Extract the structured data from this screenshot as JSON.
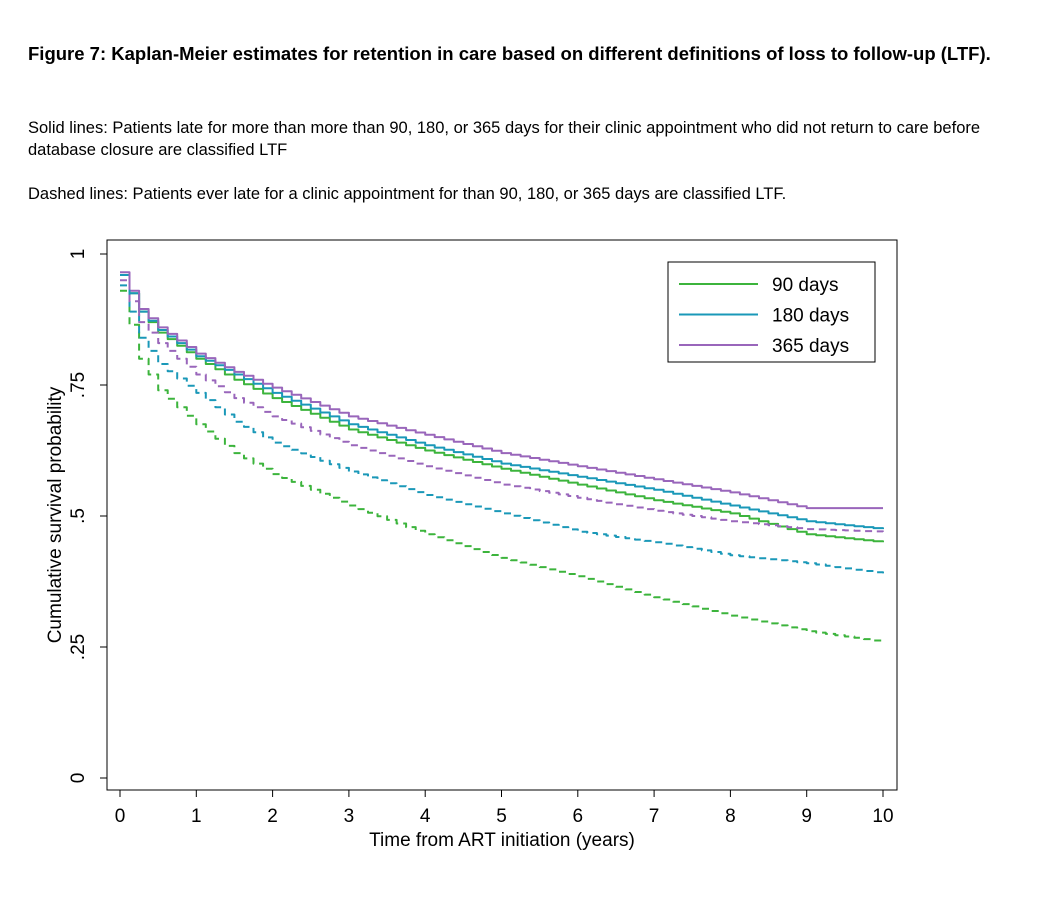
{
  "figure": {
    "title": "Figure 7: Kaplan-Meier estimates for retention in care based on different definitions of loss to follow-up (LTF).",
    "note_solid": "Solid lines: Patients late for more than more than 90, 180, or 365 days for their clinic appointment who did not return to care before database closure are classified LTF",
    "note_dashed": "Dashed lines: Patients ever late for a clinic appointment for than 90, 180, or 365 days are classified LTF."
  },
  "chart_data": {
    "type": "line",
    "title": "",
    "xlabel": "Time from ART initiation (years)",
    "ylabel": "Cumulative survival probability",
    "xlim": [
      0,
      10
    ],
    "ylim": [
      0,
      1
    ],
    "x_ticks": [
      "0",
      "1",
      "2",
      "3",
      "4",
      "5",
      "6",
      "7",
      "8",
      "9",
      "10"
    ],
    "y_ticks": [
      "0",
      ".25",
      ".5",
      ".75",
      "1"
    ],
    "legend_position": "top-right",
    "grid": false,
    "x": [
      0,
      0.25,
      0.5,
      1,
      1.5,
      2,
      3,
      4,
      5,
      6,
      7,
      8,
      9,
      10
    ],
    "series": [
      {
        "name": "90 days",
        "style": "solid",
        "color": "#3cb43c",
        "in_legend": true,
        "values": [
          0.96,
          0.89,
          0.85,
          0.8,
          0.76,
          0.725,
          0.665,
          0.625,
          0.59,
          0.56,
          0.53,
          0.505,
          0.465,
          0.45
        ]
      },
      {
        "name": "180 days",
        "style": "solid",
        "color": "#1a98b8",
        "in_legend": true,
        "values": [
          0.96,
          0.89,
          0.855,
          0.805,
          0.77,
          0.735,
          0.675,
          0.635,
          0.6,
          0.575,
          0.55,
          0.52,
          0.49,
          0.475
        ]
      },
      {
        "name": "365 days",
        "style": "solid",
        "color": "#9966bb",
        "in_legend": true,
        "values": [
          0.965,
          0.895,
          0.86,
          0.81,
          0.775,
          0.745,
          0.69,
          0.655,
          0.62,
          0.595,
          0.57,
          0.545,
          0.515,
          0.515
        ]
      },
      {
        "style": "dashed",
        "color": "#3cb43c",
        "in_legend": false,
        "values": [
          0.93,
          0.8,
          0.74,
          0.675,
          0.62,
          0.58,
          0.52,
          0.465,
          0.42,
          0.385,
          0.345,
          0.31,
          0.28,
          0.26
        ]
      },
      {
        "style": "dashed",
        "color": "#1a98b8",
        "in_legend": false,
        "values": [
          0.94,
          0.84,
          0.79,
          0.735,
          0.68,
          0.64,
          0.585,
          0.54,
          0.505,
          0.47,
          0.45,
          0.425,
          0.41,
          0.39
        ]
      },
      {
        "style": "dashed",
        "color": "#9966bb",
        "in_legend": false,
        "values": [
          0.95,
          0.87,
          0.83,
          0.77,
          0.725,
          0.69,
          0.635,
          0.595,
          0.56,
          0.535,
          0.51,
          0.49,
          0.475,
          0.47
        ]
      }
    ]
  }
}
